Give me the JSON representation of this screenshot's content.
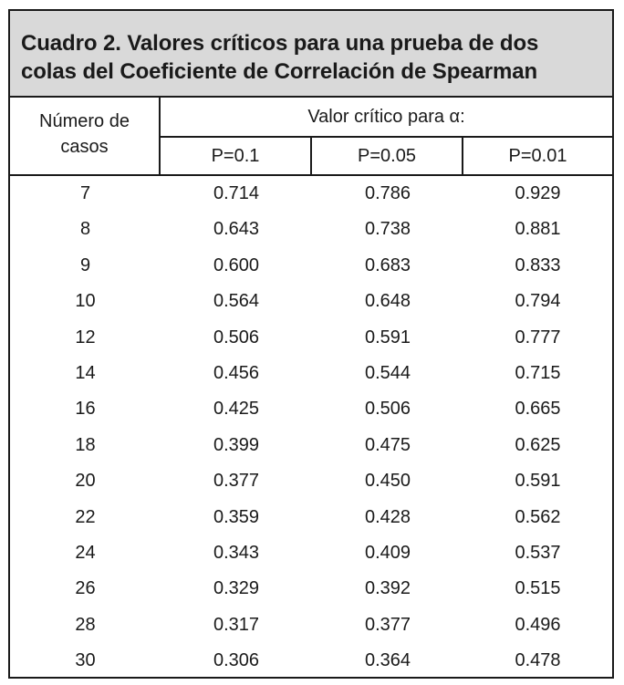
{
  "title": {
    "line1": "Cuadro 2. Valores críticos para una prueba de dos",
    "line2": "colas del Coeficiente de Correlación de Spearman"
  },
  "header": {
    "cases_line1": "Número de",
    "cases_line2": "casos",
    "critical": "Valor crítico para α:",
    "p1": "P=0.1",
    "p2": "P=0.05",
    "p3": "P=0.01"
  },
  "rows": [
    {
      "n": "7",
      "p1": "0.714",
      "p2": "0.786",
      "p3": "0.929"
    },
    {
      "n": "8",
      "p1": "0.643",
      "p2": "0.738",
      "p3": "0.881"
    },
    {
      "n": "9",
      "p1": "0.600",
      "p2": "0.683",
      "p3": "0.833"
    },
    {
      "n": "10",
      "p1": "0.564",
      "p2": "0.648",
      "p3": "0.794"
    },
    {
      "n": "12",
      "p1": "0.506",
      "p2": "0.591",
      "p3": "0.777"
    },
    {
      "n": "14",
      "p1": "0.456",
      "p2": "0.544",
      "p3": "0.715"
    },
    {
      "n": "16",
      "p1": "0.425",
      "p2": "0.506",
      "p3": "0.665"
    },
    {
      "n": "18",
      "p1": "0.399",
      "p2": "0.475",
      "p3": "0.625"
    },
    {
      "n": "20",
      "p1": "0.377",
      "p2": "0.450",
      "p3": "0.591"
    },
    {
      "n": "22",
      "p1": "0.359",
      "p2": "0.428",
      "p3": "0.562"
    },
    {
      "n": "24",
      "p1": "0.343",
      "p2": "0.409",
      "p3": "0.537"
    },
    {
      "n": "26",
      "p1": "0.329",
      "p2": "0.392",
      "p3": "0.515"
    },
    {
      "n": "28",
      "p1": "0.317",
      "p2": "0.377",
      "p3": "0.496"
    },
    {
      "n": "30",
      "p1": "0.306",
      "p2": "0.364",
      "p3": "0.478"
    }
  ]
}
